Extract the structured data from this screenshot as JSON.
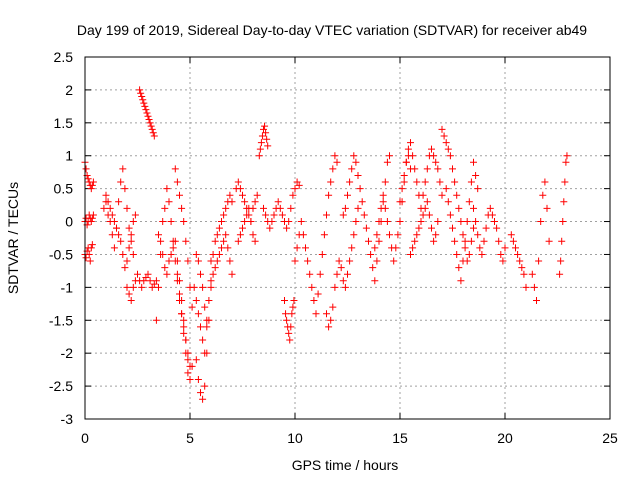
{
  "chart_data": {
    "type": "scatter",
    "title": "Day 199 of 2019, Sidereal Day-to-day VTEC variation (SDTVAR) for receiver ab49",
    "xlabel": "GPS time / hours",
    "ylabel": "SDTVAR / TECUs",
    "xlim": [
      0,
      25
    ],
    "ylim": [
      -3,
      2.5
    ],
    "xticks": [
      "0",
      "5",
      "10",
      "15",
      "20",
      "25"
    ],
    "yticks": [
      "2.5",
      "2",
      "1.5",
      "1",
      "0.5",
      "0",
      "-0.5",
      "-1",
      "-1.5",
      "-2",
      "-2.5",
      "-3"
    ],
    "grid": true,
    "marker": "+",
    "color": "#ff0000",
    "series": [
      {
        "name": "SDTVAR",
        "x": [
          0.0,
          0.05,
          0.1,
          0.15,
          0.2,
          0.25,
          0.3,
          0.35,
          0.4,
          0.0,
          0.05,
          0.1,
          0.15,
          0.2,
          0.25,
          0.3,
          0.35,
          0.0,
          0.05,
          0.1,
          0.15,
          0.2,
          0.25,
          0.3,
          0.35,
          0.4,
          0.9,
          1.0,
          1.1,
          1.2,
          1.3,
          1.4,
          1.5,
          1.6,
          1.7,
          1.8,
          1.9,
          2.0,
          2.1,
          2.2,
          2.3,
          1.0,
          1.1,
          1.2,
          1.3,
          1.4,
          1.5,
          1.6,
          1.7,
          1.8,
          1.9,
          2.0,
          2.1,
          2.2,
          2.3,
          2.4,
          2.0,
          2.1,
          2.2,
          2.3,
          2.4,
          2.5,
          2.6,
          2.7,
          2.8,
          2.9,
          3.0,
          3.1,
          3.2,
          3.3,
          3.4,
          2.6,
          2.65,
          2.7,
          2.75,
          2.8,
          2.85,
          2.9,
          2.95,
          3.0,
          3.05,
          3.1,
          3.15,
          3.2,
          3.25,
          3.3,
          3.4,
          3.5,
          3.6,
          3.7,
          3.8,
          3.9,
          4.0,
          4.1,
          4.2,
          4.3,
          4.4,
          4.5,
          4.6,
          4.7,
          4.8,
          4.9,
          5.0,
          3.5,
          3.6,
          3.7,
          3.8,
          3.9,
          4.0,
          4.1,
          4.2,
          4.3,
          4.4,
          4.5,
          4.6,
          4.7,
          4.8,
          4.9,
          5.0,
          4.3,
          4.4,
          4.5,
          4.6,
          4.7,
          4.8,
          4.9,
          5.0,
          5.1,
          4.4,
          4.5,
          4.6,
          4.7,
          4.8,
          4.9,
          5.0,
          5.1,
          5.2,
          5.3,
          5.4,
          5.5,
          5.6,
          5.7,
          5.8,
          5.9,
          6.0,
          5.3,
          5.4,
          5.5,
          5.6,
          5.7,
          5.8,
          5.9,
          6.0,
          5.3,
          5.4,
          5.5,
          5.6,
          5.7,
          5.8,
          6.0,
          6.1,
          6.2,
          6.3,
          6.4,
          6.5,
          6.6,
          6.7,
          6.8,
          6.9,
          7.0,
          6.1,
          6.2,
          6.3,
          6.4,
          6.5,
          6.6,
          6.7,
          6.8,
          6.9,
          7.0,
          7.2,
          7.3,
          7.4,
          7.5,
          7.6,
          7.7,
          7.8,
          7.9,
          8.0,
          8.1,
          8.2,
          7.3,
          7.4,
          7.5,
          7.6,
          7.7,
          7.8,
          7.9,
          8.0,
          8.1,
          8.3,
          8.35,
          8.4,
          8.45,
          8.5,
          8.55,
          8.6,
          8.65,
          8.7,
          8.5,
          8.6,
          8.7,
          8.8,
          8.9,
          9.0,
          9.1,
          9.2,
          9.3,
          9.4,
          9.5,
          9.6,
          9.7,
          9.8,
          9.9,
          10.0,
          10.1,
          10.2,
          9.5,
          9.55,
          9.6,
          9.65,
          9.7,
          9.75,
          9.8,
          9.85,
          9.9,
          9.95,
          10.0,
          10.1,
          10.2,
          10.3,
          10.4,
          10.5,
          10.6,
          10.7,
          10.8,
          10.9,
          11.0,
          11.1,
          11.2,
          11.3,
          11.4,
          11.5,
          11.6,
          11.7,
          11.8,
          11.9,
          12.0,
          11.5,
          11.6,
          11.7,
          11.8,
          11.9,
          12.0,
          12.1,
          12.2,
          12.3,
          12.4,
          12.5,
          12.6,
          12.7,
          12.8,
          12.9,
          13.0,
          12.3,
          12.4,
          12.5,
          12.6,
          12.7,
          12.8,
          12.9,
          13.0,
          13.1,
          13.2,
          13.3,
          13.4,
          13.5,
          13.6,
          13.7,
          13.8,
          13.9,
          14.0,
          14.1,
          14.2,
          14.3,
          14.4,
          14.5,
          13.8,
          13.9,
          14.0,
          14.1,
          14.2,
          14.3,
          14.4,
          14.5,
          14.6,
          14.7,
          14.8,
          14.9,
          15.0,
          15.1,
          15.2,
          15.3,
          15.4,
          15.5,
          15.0,
          15.1,
          15.2,
          15.3,
          15.4,
          15.5,
          15.6,
          15.7,
          15.8,
          15.9,
          16.0,
          16.1,
          16.2,
          16.3,
          16.4,
          16.5,
          16.6,
          16.7,
          16.8,
          16.9,
          17.0,
          15.5,
          15.6,
          15.7,
          15.8,
          15.9,
          16.0,
          16.1,
          16.2,
          16.3,
          16.4,
          16.5,
          16.6,
          16.7,
          16.8,
          17.0,
          17.1,
          17.2,
          17.3,
          17.4,
          17.5,
          17.6,
          17.7,
          17.8,
          17.9,
          18.0,
          18.1,
          18.2,
          18.3,
          18.4,
          18.5,
          17.2,
          17.3,
          17.4,
          17.5,
          17.6,
          17.7,
          17.8,
          17.9,
          18.0,
          18.1,
          18.2,
          18.3,
          18.4,
          18.5,
          18.6,
          18.7,
          18.5,
          18.6,
          18.7,
          18.8,
          18.9,
          19.0,
          19.1,
          19.2,
          19.3,
          19.4,
          19.5,
          19.6,
          19.7,
          19.8,
          19.9,
          20.0,
          20.3,
          20.4,
          20.5,
          20.6,
          20.7,
          20.8,
          20.9,
          21.0,
          21.3,
          21.4,
          21.5,
          21.6,
          21.7,
          21.8,
          21.9,
          22.0,
          22.1,
          22.6,
          22.65,
          22.7,
          22.75,
          22.8,
          22.85,
          22.9,
          22.95
        ],
        "y": [
          0.9,
          0.8,
          0.7,
          0.65,
          0.6,
          0.55,
          0.5,
          0.55,
          0.6,
          -0.5,
          -0.55,
          -0.45,
          -0.4,
          -0.5,
          -0.6,
          -0.4,
          -0.35,
          0.0,
          0.05,
          -0.05,
          0.0,
          0.1,
          0.05,
          0.0,
          0.05,
          0.1,
          0.2,
          0.3,
          0.1,
          0.0,
          -0.2,
          -0.4,
          -0.1,
          0.3,
          0.6,
          0.8,
          0.5,
          0.2,
          -0.1,
          -0.3,
          -0.5,
          0.4,
          0.3,
          0.2,
          0.1,
          0.0,
          -0.1,
          -0.2,
          -0.3,
          -0.5,
          -0.7,
          -0.6,
          -0.4,
          -0.2,
          0.0,
          0.1,
          -1.0,
          -1.1,
          -1.2,
          -1.0,
          -0.9,
          -0.8,
          -0.9,
          -1.0,
          -0.9,
          -0.85,
          -0.8,
          -0.9,
          -1.0,
          -0.95,
          -0.9,
          2.0,
          1.95,
          1.9,
          1.85,
          1.8,
          1.75,
          1.7,
          1.65,
          1.6,
          1.55,
          1.5,
          1.45,
          1.4,
          1.35,
          1.3,
          -1.5,
          -1.0,
          -0.5,
          0.0,
          0.2,
          0.5,
          0.3,
          0.0,
          -0.3,
          -0.6,
          -0.9,
          -1.2,
          -1.4,
          -1.6,
          -1.8,
          -2.0,
          -2.2,
          -0.2,
          -0.3,
          -0.5,
          -0.7,
          -0.8,
          -0.6,
          -0.5,
          -0.4,
          -0.3,
          -0.6,
          -0.9,
          -1.2,
          -1.5,
          -1.8,
          -2.1,
          -2.4,
          0.8,
          0.6,
          0.4,
          0.2,
          0.0,
          -0.3,
          -0.6,
          -1.0,
          -1.3,
          -0.8,
          -1.1,
          -1.4,
          -1.7,
          -2.0,
          -2.3,
          -2.4,
          -2.2,
          -1.0,
          -1.2,
          -1.4,
          -1.6,
          -1.8,
          -2.0,
          -1.6,
          -1.2,
          -0.9,
          -2.1,
          -2.4,
          -2.6,
          -2.7,
          -2.5,
          -2.0,
          -1.5,
          -1.0,
          -0.5,
          -0.6,
          -0.8,
          -1.0,
          -1.3,
          -1.5,
          -0.6,
          -0.5,
          -0.3,
          -0.2,
          -0.1,
          0.0,
          0.1,
          0.2,
          0.3,
          0.4,
          0.3,
          -0.8,
          -0.7,
          -0.6,
          -0.5,
          -0.4,
          -0.3,
          -0.2,
          -0.4,
          -0.6,
          -0.8,
          0.5,
          0.6,
          0.5,
          0.4,
          0.3,
          0.2,
          0.1,
          0.0,
          0.2,
          0.3,
          0.4,
          -0.3,
          -0.2,
          -0.1,
          0.0,
          0.1,
          0.2,
          0.0,
          -0.2,
          -0.3,
          1.0,
          1.1,
          1.2,
          1.3,
          1.4,
          1.45,
          1.35,
          1.25,
          1.15,
          0.2,
          0.1,
          0.0,
          -0.1,
          0.0,
          0.1,
          0.2,
          0.3,
          0.2,
          0.1,
          0.0,
          -0.1,
          0.0,
          0.2,
          0.4,
          0.5,
          0.6,
          0.55,
          -1.2,
          -1.4,
          -1.5,
          -1.6,
          -1.7,
          -1.8,
          -1.6,
          -1.4,
          -1.3,
          -1.2,
          -0.6,
          -0.4,
          -0.2,
          0.0,
          -0.2,
          -0.4,
          -0.6,
          -0.8,
          -1.0,
          -1.2,
          -1.4,
          -1.1,
          -0.8,
          -0.5,
          -0.2,
          0.1,
          0.4,
          0.6,
          0.8,
          1.0,
          0.9,
          -1.4,
          -1.6,
          -1.5,
          -1.3,
          -1.0,
          -0.8,
          -0.6,
          -0.7,
          -0.9,
          -1.0,
          -0.8,
          -0.6,
          -0.4,
          -0.2,
          0.0,
          0.2,
          0.1,
          0.2,
          0.4,
          0.6,
          0.8,
          1.0,
          0.9,
          0.7,
          0.5,
          0.3,
          0.1,
          -0.1,
          -0.3,
          -0.5,
          -0.7,
          -0.9,
          -0.6,
          -0.3,
          0.0,
          0.3,
          0.6,
          0.9,
          1.0,
          -0.4,
          -0.2,
          0.0,
          0.2,
          0.4,
          0.2,
          0.0,
          -0.2,
          -0.4,
          -0.6,
          -0.4,
          -0.2,
          0.0,
          0.3,
          0.6,
          0.9,
          1.0,
          0.8,
          0.3,
          0.5,
          0.7,
          0.9,
          1.1,
          1.2,
          1.0,
          0.8,
          0.6,
          0.4,
          0.2,
          0.4,
          0.6,
          0.8,
          1.0,
          1.1,
          1.0,
          0.9,
          0.8,
          0.6,
          0.4,
          -0.5,
          -0.4,
          -0.3,
          -0.2,
          -0.1,
          0.0,
          0.1,
          0.2,
          0.3,
          0.1,
          -0.1,
          -0.3,
          -0.2,
          0.0,
          1.4,
          1.3,
          1.2,
          1.1,
          1.0,
          0.8,
          0.6,
          0.4,
          0.2,
          0.0,
          -0.2,
          -0.4,
          -0.6,
          -0.5,
          -0.3,
          -0.1,
          0.5,
          0.3,
          0.1,
          -0.1,
          -0.3,
          -0.5,
          -0.7,
          -0.9,
          -0.6,
          -0.3,
          0.0,
          0.3,
          0.6,
          0.9,
          0.7,
          0.5,
          0.2,
          0.0,
          -0.2,
          -0.4,
          -0.5,
          -0.3,
          -0.1,
          0.1,
          0.2,
          0.1,
          0.0,
          -0.1,
          -0.3,
          -0.5,
          -0.6,
          -0.4,
          -0.2,
          -0.3,
          -0.4,
          -0.5,
          -0.6,
          -0.7,
          -0.8,
          -1.0,
          -0.8,
          -1.0,
          -1.2,
          -0.6,
          0.0,
          0.4,
          0.6,
          0.2,
          -0.3,
          -0.8,
          -0.6,
          -0.3,
          0.0,
          0.3,
          0.6,
          0.9,
          1.0
        ]
      }
    ]
  }
}
